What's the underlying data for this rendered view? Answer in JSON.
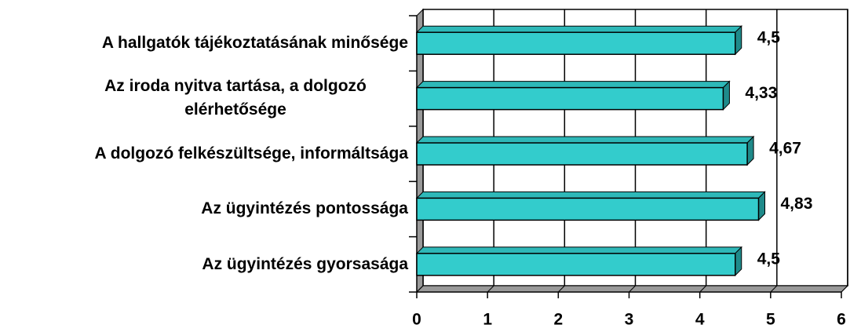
{
  "chart_data": {
    "type": "bar",
    "orientation": "horizontal",
    "categories": [
      "A hallgatók tájékoztatásának minősége",
      "Az iroda nyitva tartása, a dolgozó elérhetősége",
      "A dolgozó felkészültsége, informáltsága",
      "Az ügyintézés pontossága",
      "Az ügyintézés gyorsasága"
    ],
    "values": [
      4.5,
      4.33,
      4.67,
      4.83,
      4.5
    ],
    "value_labels": [
      "4,5",
      "4,33",
      "4,67",
      "4,83",
      "4,5"
    ],
    "color": "#33cccc",
    "xlim": [
      0,
      6
    ],
    "xticks": [
      0,
      1,
      2,
      3,
      4,
      5,
      6
    ],
    "grid": true
  }
}
